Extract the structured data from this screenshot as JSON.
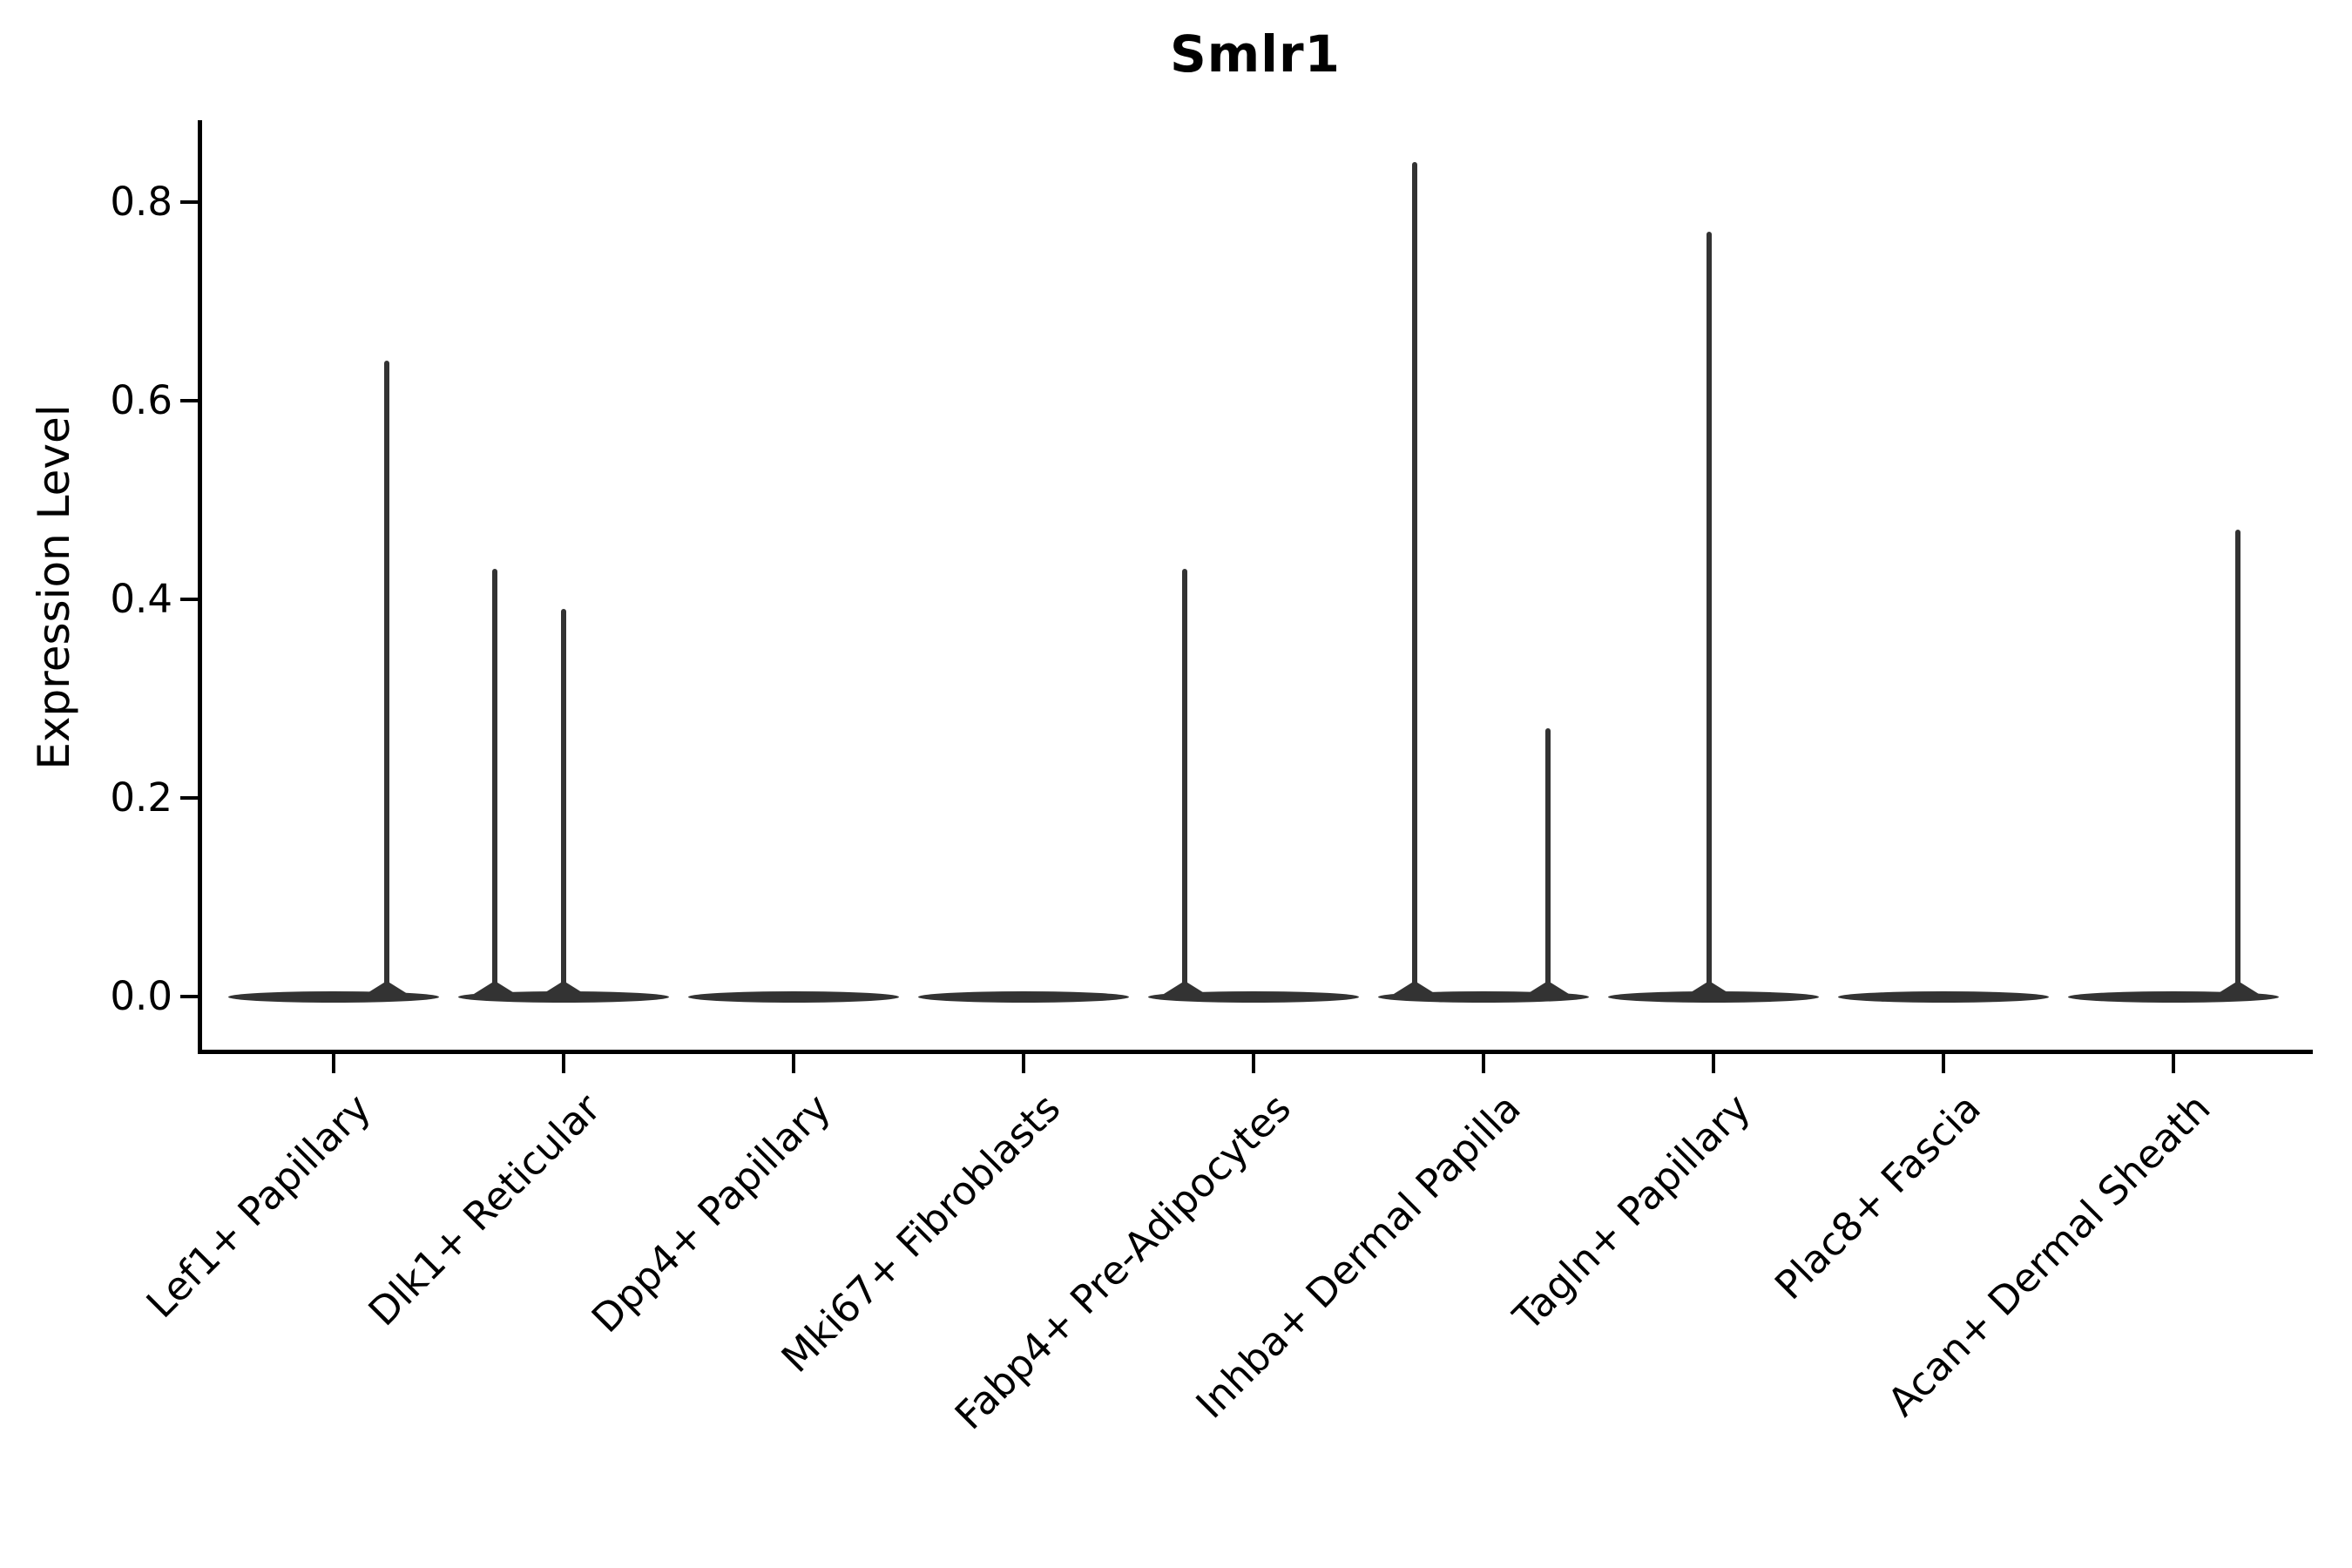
{
  "chart_data": {
    "type": "violin",
    "title": "Smlr1",
    "ylabel": "Expression Level",
    "xlabel": "",
    "grid": false,
    "legend": "none",
    "background": "#ffffff",
    "axis_color": "#000000",
    "violin_color": "#333333",
    "ylim": [
      -0.058,
      0.882
    ],
    "ytick_values": [
      0.0,
      0.2,
      0.4,
      0.6,
      0.8
    ],
    "ytick_labels": [
      "0.0",
      "0.2",
      "0.4",
      "0.6",
      "0.8"
    ],
    "categories": [
      "Lef1+ Papillary",
      "Dlk1+ Reticular",
      "Dpp4+ Papillary",
      "Mki67+ Fibroblasts",
      "Fabp4+ Pre-Adipocytes",
      "Inhba+ Dermal Papilla",
      "Tagln+ Papillary",
      "Plac8+ Fascia",
      "Acan+ Dermal Sheath"
    ],
    "violins": [
      {
        "category": "Lef1+ Papillary",
        "baseline": 0.0,
        "max_expression": 0.64,
        "spikes": [
          {
            "value": 0.64,
            "offset": 0.23
          }
        ]
      },
      {
        "category": "Dlk1+ Reticular",
        "baseline": 0.0,
        "max_expression": 0.43,
        "spikes": [
          {
            "value": 0.43,
            "offset": -0.3
          },
          {
            "value": 0.39,
            "offset": 0.0
          }
        ]
      },
      {
        "category": "Dpp4+ Papillary",
        "baseline": 0.0,
        "max_expression": 0.0,
        "spikes": []
      },
      {
        "category": "Mki67+ Fibroblasts",
        "baseline": 0.0,
        "max_expression": 0.0,
        "spikes": []
      },
      {
        "category": "Fabp4+ Pre-Adipocytes",
        "baseline": 0.0,
        "max_expression": 0.43,
        "spikes": [
          {
            "value": 0.43,
            "offset": -0.3
          }
        ]
      },
      {
        "category": "Inhba+ Dermal Papilla",
        "baseline": 0.0,
        "max_expression": 0.84,
        "spikes": [
          {
            "value": 0.84,
            "offset": -0.3
          },
          {
            "value": 0.27,
            "offset": 0.28
          }
        ]
      },
      {
        "category": "Tagln+ Papillary",
        "baseline": 0.0,
        "max_expression": 0.77,
        "spikes": [
          {
            "value": 0.77,
            "offset": -0.02
          }
        ]
      },
      {
        "category": "Plac8+ Fascia",
        "baseline": 0.0,
        "max_expression": 0.0,
        "spikes": []
      },
      {
        "category": "Acan+ Dermal Sheath",
        "baseline": 0.0,
        "max_expression": 0.47,
        "spikes": [
          {
            "value": 0.47,
            "offset": 0.28
          }
        ]
      }
    ]
  }
}
